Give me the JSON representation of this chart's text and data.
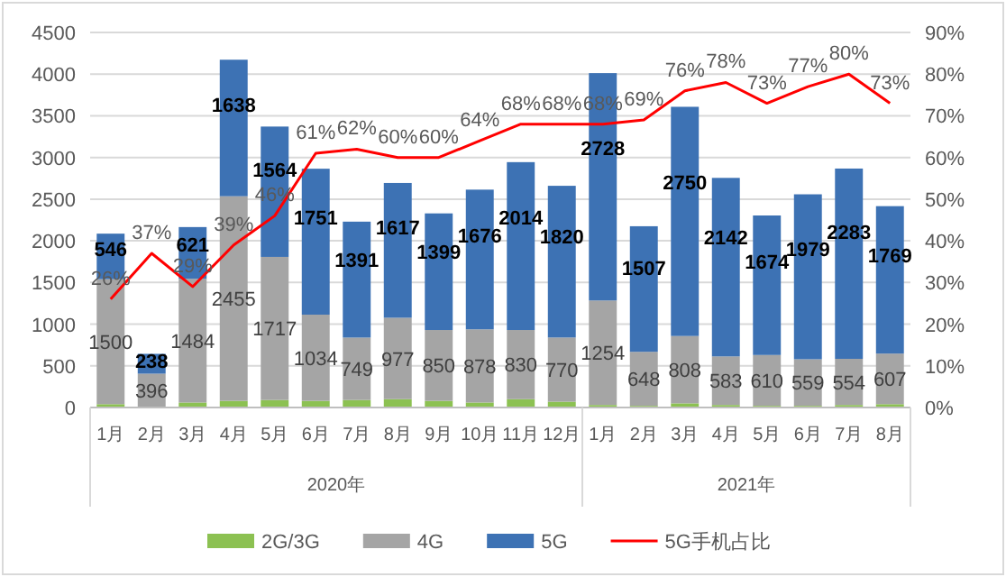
{
  "chart_data": {
    "type": "bar",
    "stacked": true,
    "categories": [
      "1月",
      "2月",
      "3月",
      "4月",
      "5月",
      "6月",
      "7月",
      "8月",
      "9月",
      "10月",
      "11月",
      "12月",
      "1月",
      "2月",
      "3月",
      "4月",
      "5月",
      "6月",
      "7月",
      "8月"
    ],
    "annotations": [
      "2020年",
      "2021年"
    ],
    "series": [
      {
        "name": "2G/3G",
        "color": "#8cc152",
        "values": [
          40,
          10,
          60,
          80,
          90,
          80,
          90,
          100,
          80,
          60,
          100,
          70,
          30,
          20,
          50,
          30,
          20,
          20,
          30,
          40
        ]
      },
      {
        "name": "4G",
        "color": "#a5a5a5",
        "values": [
          1500,
          396,
          1484,
          2455,
          1717,
          1034,
          749,
          977,
          850,
          878,
          830,
          770,
          1254,
          648,
          808,
          583,
          610,
          559,
          554,
          607
        ],
        "value_labels": [
          "1500",
          "396",
          "1484",
          "2455",
          "1717",
          "1034",
          "749",
          "977",
          "850",
          "878",
          "830",
          "770",
          "1254",
          "648",
          "808",
          "583",
          "610",
          "559",
          "554",
          "607"
        ]
      },
      {
        "name": "5G",
        "color": "#3d72b4",
        "values": [
          546,
          238,
          621,
          1638,
          1564,
          1751,
          1391,
          1617,
          1399,
          1676,
          2014,
          1820,
          2728,
          1507,
          2750,
          2142,
          1674,
          1979,
          2283,
          1769
        ],
        "value_labels": [
          "546",
          "238",
          "621",
          "1638",
          "1564",
          "1751",
          "1391",
          "1617",
          "1399",
          "1676",
          "2014",
          "1820",
          "2728",
          "1507",
          "2750",
          "2142",
          "1674",
          "1979",
          "2283",
          "1769"
        ]
      },
      {
        "name": "5G手机占比",
        "type": "line",
        "axis": "y2",
        "color": "#ff0000",
        "values": [
          26,
          37,
          29,
          39,
          46,
          61,
          62,
          60,
          60,
          64,
          68,
          68,
          68,
          69,
          76,
          78,
          73,
          77,
          80,
          73
        ],
        "value_labels": [
          "26%",
          "37%",
          "29%",
          "39%",
          "46%",
          "61%",
          "62%",
          "60%",
          "60%",
          "64%",
          "68%",
          "68%",
          "68%",
          "69%",
          "76%",
          "78%",
          "73%",
          "77%",
          "80%",
          "73%"
        ]
      }
    ],
    "ylim": [
      0,
      4500
    ],
    "yticks": [
      0,
      500,
      1000,
      1500,
      2000,
      2500,
      3000,
      3500,
      4000,
      4500
    ],
    "y2lim": [
      0,
      90
    ],
    "y2ticks": [
      {
        "value": 0,
        "label": "0%"
      },
      {
        "value": 10,
        "label": "10%"
      },
      {
        "value": 20,
        "label": "20%"
      },
      {
        "value": 30,
        "label": "30%"
      },
      {
        "value": 40,
        "label": "40%"
      },
      {
        "value": 50,
        "label": "50%"
      },
      {
        "value": 60,
        "label": "60%"
      },
      {
        "value": 70,
        "label": "70%"
      },
      {
        "value": 80,
        "label": "80%"
      },
      {
        "value": 90,
        "label": "90%"
      }
    ],
    "grid": "y",
    "legend": "bottom"
  }
}
